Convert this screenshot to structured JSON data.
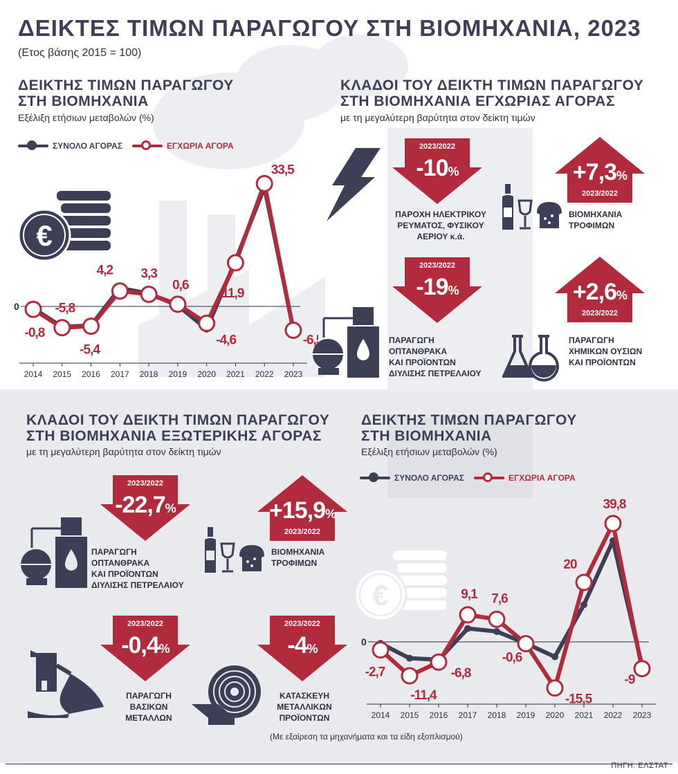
{
  "title": "ΔΕΙΚΤΕΣ ΤΙΜΩΝ ΠΑΡΑΓΩΓΟΥ ΣΤΗ ΒΙΟΜΗΧΑΝΙΑ, 2023",
  "base_note": "(Ετος βάσης 2015 = 100)",
  "colors": {
    "total": "#3c3f56",
    "domestic": "#b22b3d",
    "arrow_red": "#b22b3d",
    "lower_bg": "#e9eaee"
  },
  "legend": {
    "total": "ΣΥΝΟΛΟ ΑΓΟΡΑΣ",
    "domestic": "ΕΓΧΩΡΙΑ ΑΓΟΡΑ"
  },
  "chart1": {
    "title": "ΔΕΙΚΤΗΣ ΤΙΜΩΝ ΠΑΡΑΓΩΓΟΥ ΣΤΗ ΒΙΟΜΗΧΑΝΙΑ",
    "subtitle": "Εξέλιξη ετήσιων μεταβολών (%)"
  },
  "chart2": {
    "title": "ΔΕΙΚΤΗΣ ΤΙΜΩΝ ΠΑΡΑΓΩΓΟΥ ΣΤΗ ΒΙΟΜΗΧΑΝΙΑ",
    "subtitle": "Εξέλιξη ετήσιων μεταβολών (%)"
  },
  "chart_data": [
    {
      "type": "line",
      "x": [
        "2014",
        "2015",
        "2016",
        "2017",
        "2018",
        "2019",
        "2020",
        "2021",
        "2022",
        "2023"
      ],
      "zero_label": "0",
      "series": [
        {
          "name": "ΣΥΝΟΛΟ ΑΓΟΡΑΣ",
          "values": [
            -0.5,
            -5.6,
            -5.2,
            5.0,
            3.5,
            0.3,
            -6.2,
            12.5,
            32.5,
            -6.3
          ]
        },
        {
          "name": "ΕΓΧΩΡΙΑ ΑΓΟΡΑ",
          "values": [
            -0.8,
            -5.8,
            -5.4,
            4.2,
            3.3,
            0.6,
            -4.6,
            11.9,
            33.5,
            -6.5
          ],
          "labels": [
            "-0,8",
            "-5,8",
            "-5,4",
            "4,2",
            "3,3",
            "0,6",
            "-4,6",
            "11,9",
            "33,5",
            "-6,5"
          ]
        }
      ],
      "ylim": [
        -10,
        40
      ]
    },
    {
      "type": "line",
      "x": [
        "2014",
        "2015",
        "2016",
        "2017",
        "2018",
        "2019",
        "2020",
        "2021",
        "2022",
        "2023"
      ],
      "zero_label": "0",
      "series": [
        {
          "name": "ΣΥΝΟΛΟ ΑΓΟΡΑΣ",
          "values": [
            -0.5,
            -5.5,
            -6.0,
            4.5,
            3.5,
            -0.5,
            -5.0,
            12.5,
            34.0,
            -8.0
          ]
        },
        {
          "name": "ΕΓΧΩΡΙΑ ΑΓΟΡΑ",
          "values": [
            -2.7,
            -11.4,
            -6.8,
            9.1,
            7.6,
            -0.6,
            -15.5,
            20.0,
            39.8,
            -9.0
          ],
          "labels": [
            "-2,7",
            "-11,4",
            "-6,8",
            "9,1",
            "7,6",
            "-0,6",
            "-15,5",
            "20",
            "39,8",
            "-9"
          ]
        }
      ],
      "ylim": [
        -20,
        45
      ]
    }
  ],
  "domestic_sectors": {
    "title": "ΚΛΑΔΟΙ ΤΟΥ ΔΕΙΚΤΗ ΤΙΜΩΝ ΠΑΡΑΓΩΓΟΥ ΣΤΗ ΒΙΟΜΗΧΑΝΙΑ ΕΓΧΩΡΙΑΣ ΑΓΟΡΑΣ",
    "subtitle": "με τη μεγαλύτερη βαρύτητα στον δείκτη τιμών",
    "items": [
      {
        "period": "2023/2022",
        "value": "-10",
        "pct": "%",
        "direction": "down",
        "icon": "lightning-icon",
        "label": [
          "ΠΑΡΟΧΗ ΗΛΕΚΤΡΙΚΟΥ",
          "ΡΕΥΜΑΤΟΣ, ΦΥΣΙΚΟΥ",
          "ΑΕΡΙΟΥ κ.ά."
        ]
      },
      {
        "period": "2023/2022",
        "value": "+7,3",
        "pct": "%",
        "direction": "up",
        "icon": "bottle-glass-bread-icon",
        "label": [
          "ΒΙΟΜΗΧΑΝΙΑ",
          "ΤΡΟΦΙΜΩΝ"
        ]
      },
      {
        "period": "2023/2022",
        "value": "-19",
        "pct": "%",
        "direction": "down",
        "icon": "refinery-icon",
        "label": [
          "ΠΑΡΑΓΩΓΗ",
          "ΟΠΤΑΝΘΡΑΚΑ",
          "ΚΑΙ ΠΡΟΪΟΝΤΩΝ",
          "ΔΙΥΛΙΣΗΣ ΠΕΤΡΕΛΑΙΟΥ"
        ]
      },
      {
        "period": "2023/2022",
        "value": "+2,6",
        "pct": "%",
        "direction": "up",
        "icon": "chemistry-flask-icon",
        "label": [
          "ΠΑΡΑΓΩΓΗ",
          "ΧΗΜΙΚΩΝ ΟΥΣΙΩΝ",
          "ΚΑΙ ΠΡΟΪΟΝΤΩΝ"
        ]
      }
    ]
  },
  "foreign_sectors": {
    "title": "ΚΛΑΔΟΙ ΤΟΥ ΔΕΙΚΤΗ ΤΙΜΩΝ ΠΑΡΑΓΩΓΟΥ ΣΤΗ ΒΙΟΜΗΧΑΝΙΑ ΕΞΩΤΕΡΙΚΗΣ ΑΓΟΡΑΣ",
    "subtitle": "με τη μεγαλύτερη βαρύτητα στον δείκτη τιμών",
    "items": [
      {
        "period": "2023/2022",
        "value": "-22,7",
        "pct": "%",
        "direction": "down",
        "icon": "refinery-icon",
        "label": [
          "ΠΑΡΑΓΩΓΗ",
          "ΟΠΤΑΝΘΡΑΚΑ",
          "ΚΑΙ ΠΡΟΪΟΝΤΩΝ",
          "ΔΙΥΛΙΣΗΣ ΠΕΤΡΕΛΑΙΟΥ"
        ]
      },
      {
        "period": "2023/2022",
        "value": "+15,9",
        "pct": "%",
        "direction": "up",
        "icon": "bottle-glass-bread-icon",
        "label": [
          "ΒΙΟΜΗΧΑΝΙΑ",
          "ΤΡΟΦΙΜΩΝ"
        ]
      },
      {
        "period": "2023/2022",
        "value": "-0,4",
        "pct": "%",
        "direction": "down",
        "icon": "metal-ladle-icon",
        "label": [
          "ΠΑΡΑΓΩΓΗ",
          "ΒΑΣΙΚΩΝ",
          "ΜΕΤΑΛΛΩΝ"
        ]
      },
      {
        "period": "2023/2022",
        "value": "-4",
        "pct": "%",
        "direction": "down",
        "icon": "metal-roll-icon",
        "label": [
          "ΚΑΤΑΣΚΕΥΗ",
          "ΜΕΤΑΛΛΙΚΩΝ",
          "ΠΡΟΪΟΝΤΩΝ"
        ]
      }
    ],
    "note": "(Με εξαίρεση τα μηχανήματα και τα είδη εξοπλισμού)"
  },
  "source": "ΠΗΓΗ: ΕΛΣΤΑΤ"
}
